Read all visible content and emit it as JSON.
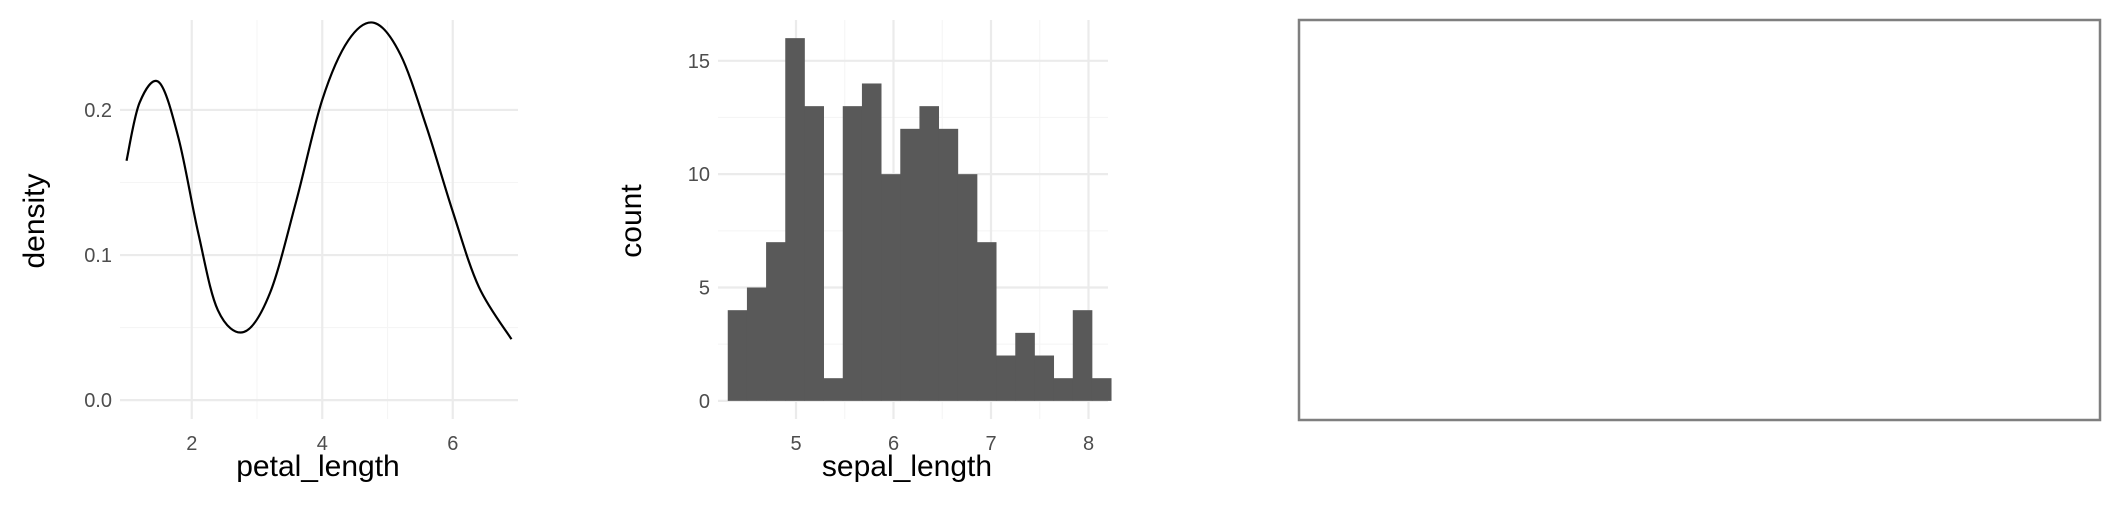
{
  "chart_data": [
    {
      "type": "line",
      "xlabel": "petal_length",
      "ylabel": "density",
      "xlim": [
        0.9,
        7.0
      ],
      "ylim": [
        -0.013,
        0.262
      ],
      "xticks": [
        2,
        4,
        6
      ],
      "xtick_labels": [
        "2",
        "4",
        "6"
      ],
      "yticks": [
        0.0,
        0.1,
        0.2
      ],
      "ytick_labels": [
        "0.0",
        "0.1",
        "0.2"
      ],
      "grid": true,
      "series": [
        {
          "x": [
            1.0,
            1.2,
            1.5,
            1.8,
            2.1,
            2.4,
            2.8,
            3.2,
            3.6,
            4.0,
            4.4,
            4.8,
            5.2,
            5.6,
            6.0,
            6.4,
            6.9
          ],
          "y": [
            0.165,
            0.205,
            0.219,
            0.18,
            0.115,
            0.062,
            0.047,
            0.074,
            0.137,
            0.207,
            0.248,
            0.26,
            0.238,
            0.188,
            0.13,
            0.078,
            0.042
          ]
        }
      ]
    },
    {
      "type": "bar",
      "xlabel": "sepal_length",
      "ylabel": "count",
      "xlim": [
        4.2,
        8.2
      ],
      "ylim": [
        -0.8,
        16.8
      ],
      "xticks": [
        5,
        6,
        7,
        8
      ],
      "xtick_labels": [
        "5",
        "6",
        "7",
        "8"
      ],
      "yticks": [
        0,
        5,
        10,
        15
      ],
      "ytick_labels": [
        "0",
        "5",
        "10",
        "15"
      ],
      "grid": true,
      "bin_start": 4.3,
      "bin_width": 0.1966,
      "values": [
        4,
        5,
        7,
        16,
        13,
        1,
        13,
        14,
        10,
        12,
        13,
        12,
        10,
        7,
        2,
        3,
        2,
        1,
        4,
        1
      ]
    }
  ]
}
